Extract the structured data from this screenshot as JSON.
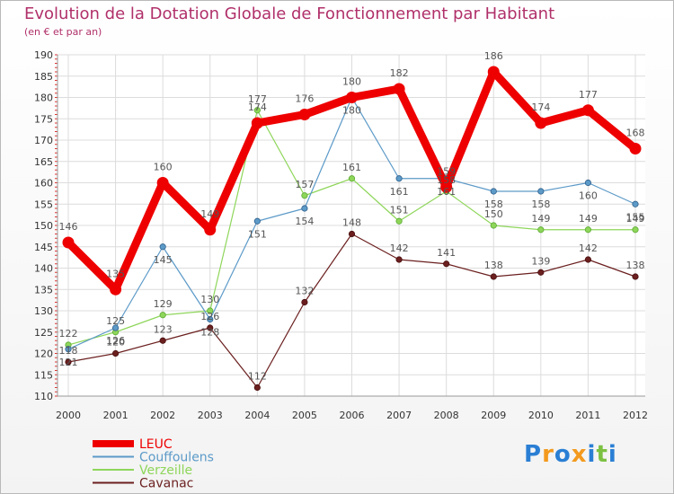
{
  "chart_data": {
    "type": "line",
    "title": "Evolution de la Dotation Globale de Fonctionnement par Habitant",
    "subtitle": "(en € et par an)",
    "xlabel": "",
    "ylabel": "",
    "categories": [
      "2000",
      "2001",
      "2002",
      "2003",
      "2004",
      "2005",
      "2006",
      "2007",
      "2008",
      "2009",
      "2010",
      "2011",
      "2012"
    ],
    "ylim": [
      110,
      190
    ],
    "yticks": [
      110,
      115,
      120,
      125,
      130,
      135,
      140,
      145,
      150,
      155,
      160,
      165,
      170,
      175,
      180,
      185,
      190
    ],
    "grid": true,
    "legend": "bottom-left",
    "series": [
      {
        "name": "LEUC",
        "color": "#ee0000",
        "values": [
          146,
          135,
          160,
          149,
          174,
          176,
          180,
          182,
          159,
          186,
          174,
          177,
          168
        ]
      },
      {
        "name": "Couffoulens",
        "color": "#5c9ac8",
        "values": [
          121,
          126,
          145,
          128,
          151,
          154,
          180,
          161,
          161,
          158,
          158,
          160,
          155
        ]
      },
      {
        "name": "Verzeille",
        "color": "#8ed65a",
        "values": [
          122,
          125,
          129,
          130,
          177,
          157,
          161,
          151,
          158,
          150,
          149,
          149,
          149
        ]
      },
      {
        "name": "Cavanac",
        "color": "#6b1f1f",
        "values": [
          118,
          120,
          123,
          126,
          112,
          132,
          148,
          142,
          141,
          138,
          139,
          142,
          138
        ]
      }
    ]
  },
  "logo": {
    "text": "Proxiti",
    "letters": [
      "P",
      "r",
      "o",
      "x",
      "i",
      "t",
      "i"
    ],
    "colors": [
      "#2a7fd4",
      "#f39a1e",
      "#2a7fd4",
      "#f39a1e",
      "#2a7fd4",
      "#7cc142",
      "#2a7fd4"
    ]
  }
}
